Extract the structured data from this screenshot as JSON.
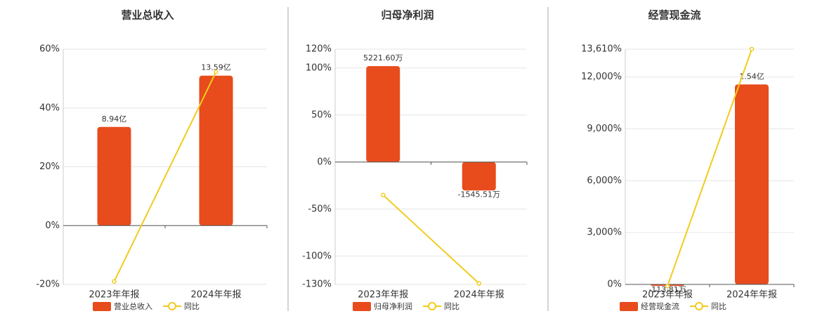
{
  "chart_data": [
    {
      "type": "combo",
      "title": "营业总收入",
      "categories": [
        "2023年年报",
        "2024年年报"
      ],
      "ylim": [
        -20,
        60
      ],
      "yticks": [
        {
          "value": -20,
          "label": "-20%"
        },
        {
          "value": 0,
          "label": "0%"
        },
        {
          "value": 20,
          "label": "20%"
        },
        {
          "value": 40,
          "label": "40%"
        },
        {
          "value": 60,
          "label": "60%"
        }
      ],
      "grid": true,
      "series": [
        {
          "name": "营业总收入",
          "type": "bar",
          "color": "#e84c1c",
          "values": [
            894000000,
            1359000000
          ],
          "value_labels": [
            "8.94亿",
            "13.59亿"
          ]
        },
        {
          "name": "同比",
          "type": "line",
          "color": "#f2cb1d",
          "values": [
            -19,
            52.3
          ]
        }
      ]
    },
    {
      "type": "combo",
      "title": "归母净利润",
      "categories": [
        "2023年年报",
        "2024年年报"
      ],
      "ylim": [
        -130,
        120
      ],
      "yticks": [
        {
          "value": -130,
          "label": "-130%"
        },
        {
          "value": -100,
          "label": "-100%"
        },
        {
          "value": -50,
          "label": "-50%"
        },
        {
          "value": 0,
          "label": "0%"
        },
        {
          "value": 50,
          "label": "50%"
        },
        {
          "value": 100,
          "label": "100%"
        },
        {
          "value": 120,
          "label": "120%"
        }
      ],
      "grid": true,
      "series": [
        {
          "name": "归母净利润",
          "type": "bar",
          "color": "#e84c1c",
          "values": [
            52216000,
            -15455100
          ],
          "value_labels": [
            "5221.60万",
            "-1545.51万"
          ]
        },
        {
          "name": "同比",
          "type": "line",
          "color": "#f2cb1d",
          "values": [
            -35,
            -129
          ]
        }
      ]
    },
    {
      "type": "combo",
      "title": "经营现金流",
      "categories": [
        "2023年年报",
        "2024年年报"
      ],
      "ylim": [
        0,
        13610
      ],
      "yticks": [
        {
          "value": 0,
          "label": "0%"
        },
        {
          "value": 3000,
          "label": "3,000%"
        },
        {
          "value": 6000,
          "label": "6,000%"
        },
        {
          "value": 9000,
          "label": "9,000%"
        },
        {
          "value": 12000,
          "label": "12,000%"
        },
        {
          "value": 13610,
          "label": "13,610%"
        }
      ],
      "grid": true,
      "series": [
        {
          "name": "经营现金流",
          "type": "bar",
          "color": "#e84c1c",
          "values": [
            -1138100,
            154000000
          ],
          "value_labels": [
            "-113.81万",
            "1.54亿"
          ]
        },
        {
          "name": "同比",
          "type": "line",
          "color": "#f2cb1d",
          "values": [
            -100,
            13610
          ]
        }
      ]
    }
  ]
}
